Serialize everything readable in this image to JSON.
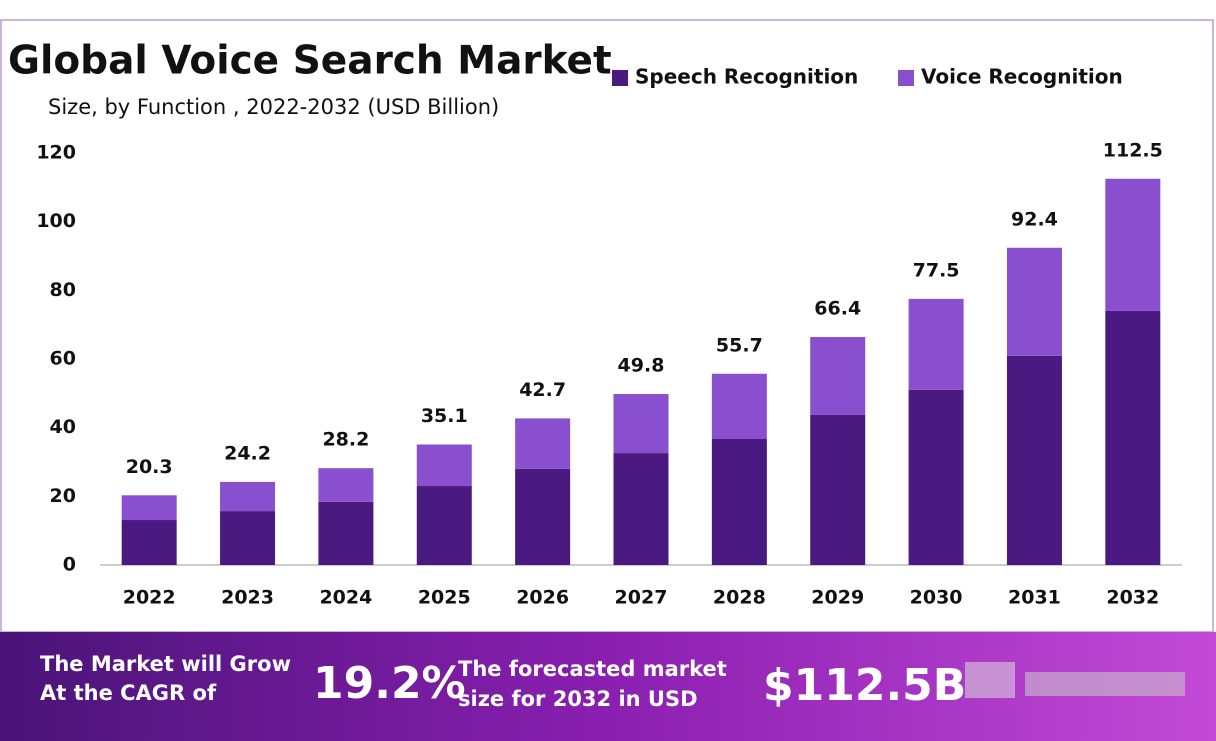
{
  "chart_data": {
    "type": "stacked-bar",
    "title": "Global Voice Search Market",
    "subtitle": "Size, by Function , 2022-2032 (USD Billion)",
    "categories": [
      "2022",
      "2023",
      "2024",
      "2025",
      "2026",
      "2027",
      "2028",
      "2029",
      "2030",
      "2031",
      "2032"
    ],
    "series": [
      {
        "name": "Speech Recognition",
        "color": "#4b1a80",
        "values": [
          13.1,
          15.7,
          18.4,
          23.0,
          28.0,
          32.6,
          36.7,
          43.7,
          51.0,
          60.9,
          74.0
        ]
      },
      {
        "name": "Voice Recognition",
        "color": "#8a4fcf",
        "values": [
          7.2,
          8.5,
          9.8,
          12.1,
          14.7,
          17.2,
          19.0,
          22.7,
          26.5,
          31.5,
          38.5
        ]
      }
    ],
    "totals": [
      20.3,
      24.2,
      28.2,
      35.1,
      42.7,
      49.8,
      55.7,
      66.4,
      77.5,
      92.4,
      112.5
    ],
    "ylim": [
      0,
      120
    ],
    "yticks": [
      0,
      20,
      40,
      60,
      80,
      100,
      120
    ],
    "grid": false
  },
  "footer": {
    "cagr_text": [
      "The Market will Grow",
      "At the CAGR of"
    ],
    "cagr": "19.2%",
    "forecast_text": [
      "The forecasted market",
      "size for 2032 in USD"
    ],
    "forecast": "$112.5B"
  }
}
